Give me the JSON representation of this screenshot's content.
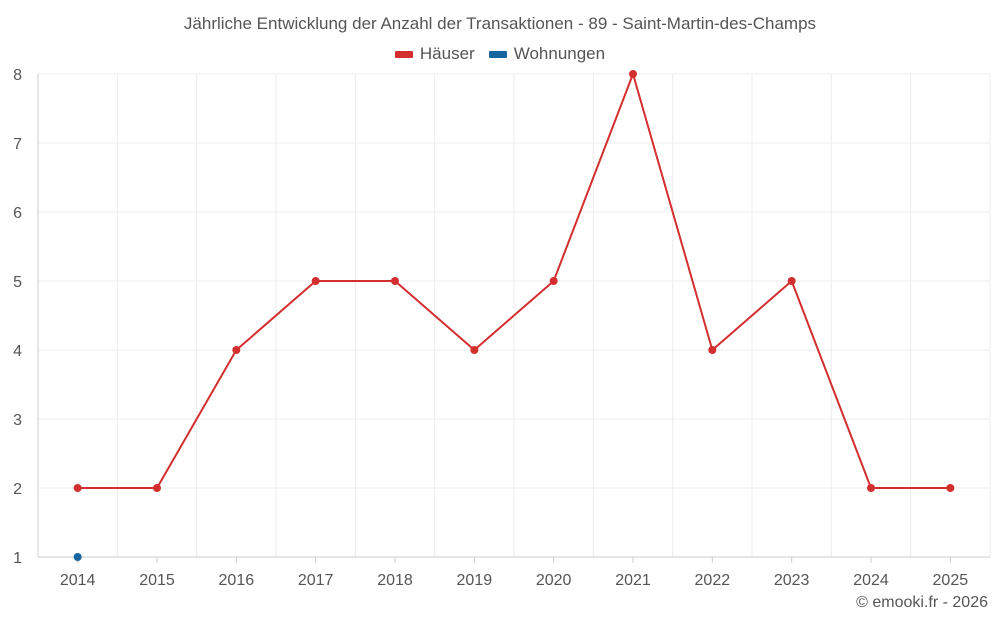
{
  "chart_data": {
    "type": "line",
    "title": "Jährliche Entwicklung der Anzahl der Transaktionen - 89 - Saint-Martin-des-Champs",
    "xlabel": "",
    "ylabel": "",
    "categories": [
      "2014",
      "2015",
      "2016",
      "2017",
      "2018",
      "2019",
      "2020",
      "2021",
      "2022",
      "2023",
      "2024",
      "2025"
    ],
    "yticks": [
      "1",
      "2",
      "3",
      "4",
      "5",
      "6",
      "7",
      "8"
    ],
    "ylim": [
      1,
      8
    ],
    "grid": true,
    "legend_position": "top",
    "series": [
      {
        "name": "Häuser",
        "color": "#d32f2f",
        "values": [
          2,
          2,
          4,
          5,
          5,
          4,
          5,
          8,
          4,
          5,
          2,
          2
        ]
      },
      {
        "name": "Wohnungen",
        "color": "#1565a0",
        "values": [
          1,
          null,
          null,
          null,
          null,
          null,
          null,
          null,
          null,
          null,
          null,
          null
        ]
      }
    ]
  },
  "credit": "© emooki.fr - 2026"
}
